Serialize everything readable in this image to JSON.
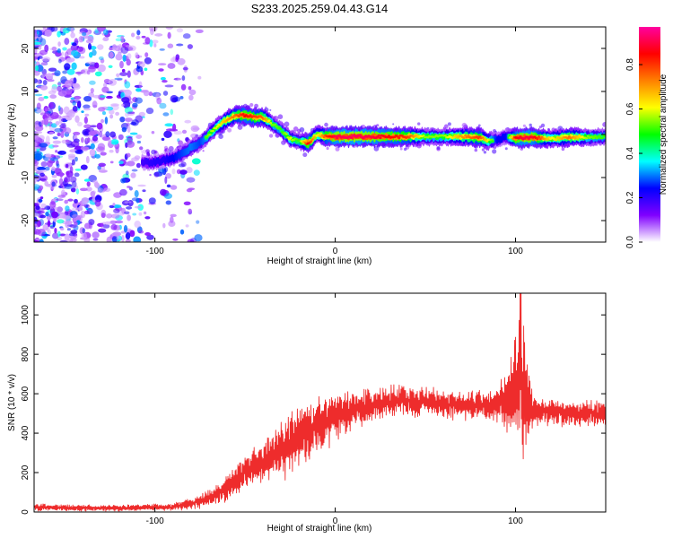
{
  "figure_title": "S233.2025.259.04.43.G14",
  "chart_data": [
    {
      "id": "spectrogram",
      "type": "heatmap",
      "xlabel": "Height of straight line (km)",
      "ylabel": "Frequency (Hz)",
      "xlim": [
        -167,
        150
      ],
      "ylim": [
        -25,
        25
      ],
      "xticks": [
        -100,
        0,
        100
      ],
      "yticks": [
        -20,
        -10,
        0,
        10,
        20
      ],
      "colorbar": {
        "label": "Normalized spectral amplitude",
        "range": [
          0,
          0.97
        ],
        "ticks": [
          0.0,
          0.2,
          0.4,
          0.6,
          0.8
        ],
        "colormap": [
          "#ffffff",
          "#8000ff",
          "#0000ff",
          "#00ffff",
          "#00ff00",
          "#ffff00",
          "#ff8000",
          "#ff0000",
          "#ff00a0"
        ]
      },
      "ridge": {
        "x": [
          -107,
          -100,
          -95,
          -90,
          -85,
          -80,
          -75,
          -70,
          -65,
          -60,
          -55,
          -50,
          -45,
          -40,
          -35,
          -30,
          -25,
          -20,
          -15,
          -10,
          -5,
          0,
          10,
          20,
          30,
          40,
          50,
          60,
          70,
          80,
          85,
          90,
          95,
          100,
          105,
          110,
          120,
          130,
          140,
          150
        ],
        "y": [
          -6.5,
          -6.5,
          -6.0,
          -5.5,
          -4.5,
          -3.0,
          -2.0,
          0.0,
          2.0,
          3.5,
          4.5,
          4.5,
          4.0,
          4.0,
          2.5,
          1.0,
          -1.0,
          -1.5,
          -2.0,
          0.0,
          -0.5,
          -0.5,
          -0.5,
          -0.5,
          -0.5,
          -0.5,
          -0.5,
          -0.5,
          -0.5,
          -0.7,
          -1.5,
          -1.2,
          -0.5,
          -0.8,
          -0.7,
          -0.7,
          -1.0,
          -0.6,
          -0.6,
          -0.6
        ],
        "amplitude": [
          0.3,
          0.35,
          0.35,
          0.4,
          0.45,
          0.5,
          0.45,
          0.55,
          0.6,
          0.7,
          0.75,
          0.85,
          0.8,
          0.75,
          0.55,
          0.5,
          0.6,
          0.5,
          0.85,
          0.6,
          0.8,
          0.9,
          0.92,
          0.9,
          0.85,
          0.8,
          0.55,
          0.55,
          0.7,
          0.8,
          0.6,
          0.4,
          0.4,
          0.85,
          0.9,
          0.88,
          0.6,
          0.75,
          0.55,
          0.5
        ]
      },
      "noise_region_x": [
        -167,
        -75
      ],
      "noise_amplitude_range": [
        0.0,
        0.35
      ]
    },
    {
      "id": "snr",
      "type": "line",
      "xlabel": "Height of straight line (km)",
      "ylabel": "SNR (10 * v/v)",
      "xlim": [
        -167,
        150
      ],
      "ylim": [
        0,
        1110
      ],
      "xticks": [
        -100,
        0,
        100
      ],
      "yticks": [
        0,
        200,
        400,
        600,
        800,
        1000
      ],
      "color": "#ee2c2c",
      "series": [
        {
          "name": "SNR",
          "x": [
            -167,
            -150,
            -130,
            -110,
            -90,
            -80,
            -70,
            -60,
            -50,
            -40,
            -30,
            -20,
            -10,
            0,
            10,
            20,
            30,
            40,
            50,
            60,
            70,
            80,
            90,
            95,
            100,
            103,
            106,
            110,
            120,
            130,
            140,
            150
          ],
          "y": [
            25,
            20,
            20,
            22,
            25,
            40,
            70,
            120,
            200,
            260,
            310,
            380,
            430,
            480,
            520,
            540,
            560,
            570,
            560,
            550,
            540,
            545,
            540,
            560,
            600,
            700,
            560,
            520,
            510,
            500,
            500,
            500
          ],
          "noise": [
            15,
            12,
            12,
            12,
            15,
            20,
            30,
            50,
            70,
            90,
            110,
            120,
            110,
            90,
            70,
            70,
            60,
            60,
            60,
            55,
            55,
            55,
            70,
            120,
            220,
            350,
            200,
            60,
            50,
            50,
            50,
            50
          ]
        }
      ]
    }
  ]
}
